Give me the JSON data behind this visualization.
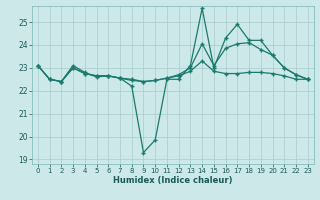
{
  "xlabel": "Humidex (Indice chaleur)",
  "bg_color": "#cce8e8",
  "grid_color": "#aacccc",
  "line_color": "#1a7a6e",
  "xlim": [
    -0.5,
    23.5
  ],
  "ylim": [
    18.8,
    25.7
  ],
  "xticks": [
    0,
    1,
    2,
    3,
    4,
    5,
    6,
    7,
    8,
    9,
    10,
    11,
    12,
    13,
    14,
    15,
    16,
    17,
    18,
    19,
    20,
    21,
    22,
    23
  ],
  "yticks": [
    19,
    20,
    21,
    22,
    23,
    24,
    25
  ],
  "x": [
    0,
    1,
    2,
    3,
    4,
    5,
    6,
    7,
    8,
    9,
    10,
    11,
    12,
    13,
    14,
    15,
    16,
    17,
    18,
    19,
    20,
    21,
    22,
    23
  ],
  "line1": [
    23.1,
    22.5,
    22.4,
    23.1,
    22.8,
    22.6,
    22.65,
    22.55,
    22.2,
    19.3,
    19.85,
    22.5,
    22.5,
    23.1,
    25.6,
    23.0,
    24.3,
    24.9,
    24.2,
    24.2,
    23.55,
    23.0,
    22.7,
    22.5
  ],
  "line2": [
    23.1,
    22.5,
    22.4,
    23.0,
    22.75,
    22.65,
    22.65,
    22.55,
    22.45,
    22.4,
    22.45,
    22.55,
    22.7,
    23.0,
    24.05,
    23.1,
    23.85,
    24.05,
    24.1,
    23.8,
    23.55,
    23.0,
    22.7,
    22.5
  ],
  "line3": [
    23.1,
    22.5,
    22.4,
    23.0,
    22.75,
    22.65,
    22.65,
    22.55,
    22.5,
    22.4,
    22.45,
    22.55,
    22.65,
    22.85,
    23.3,
    22.85,
    22.75,
    22.75,
    22.8,
    22.8,
    22.75,
    22.65,
    22.5,
    22.5
  ]
}
